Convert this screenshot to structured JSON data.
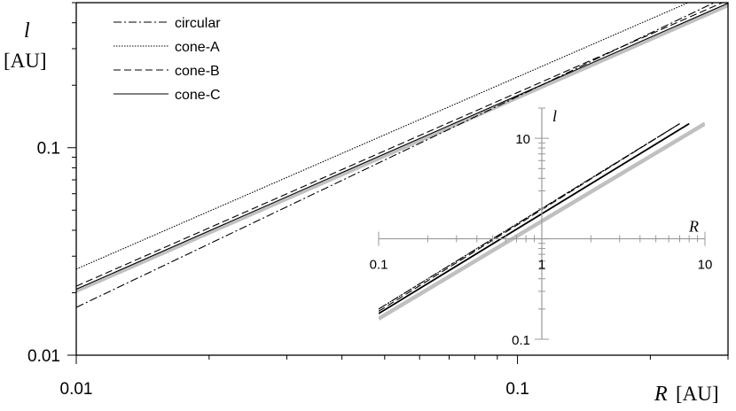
{
  "chart_data": {
    "type": "line",
    "x_scale": "log",
    "y_scale": "log",
    "xlim": [
      0.01,
      0.3
    ],
    "ylim": [
      0.01,
      0.5
    ],
    "x_ticks": [
      "0.01",
      "0.1"
    ],
    "y_ticks": [
      "0.01",
      "0.1"
    ],
    "ylabel": "l",
    "ylabel_unit": "[AU]",
    "xlabel": "R",
    "xlabel_unit": "[AU]",
    "grid": false,
    "legend_position": "top-left",
    "series": [
      {
        "name": "circular",
        "style": "dash-dot",
        "color": "#000000",
        "x": [
          0.01,
          0.3
        ],
        "y": [
          0.017,
          0.538
        ]
      },
      {
        "name": "cone-A",
        "style": "dotted",
        "color": "#000000",
        "x": [
          0.01,
          0.3
        ],
        "y": [
          0.026,
          0.606
        ]
      },
      {
        "name": "cone-B",
        "style": "dashed",
        "color": "#000000",
        "x": [
          0.01,
          0.3
        ],
        "y": [
          0.0215,
          0.514
        ]
      },
      {
        "name": "cone-C",
        "style": "solid",
        "color": "#000000",
        "x": [
          0.01,
          0.3
        ],
        "y": [
          0.0208,
          0.497
        ]
      },
      {
        "style": "solid",
        "color": "#c0c0c0",
        "x": [
          0.01,
          0.3
        ],
        "y": [
          0.0204,
          0.486
        ]
      }
    ],
    "inset": {
      "x_scale": "log",
      "y_scale": "log",
      "xlim": [
        0.1,
        10
      ],
      "ylim": [
        0.1,
        20
      ],
      "x_ticks": [
        "0.1",
        "1",
        "10"
      ],
      "y_ticks": [
        "0.1",
        "1",
        "10"
      ],
      "xlabel": "R",
      "ylabel": "l",
      "series": [
        {
          "style": "dash-dot",
          "color": "#000000",
          "x": [
            0.1,
            7
          ],
          "y": [
            0.2,
            14
          ]
        },
        {
          "style": "dotted",
          "color": "#000000",
          "x": [
            0.1,
            7
          ],
          "y": [
            0.2,
            14
          ]
        },
        {
          "style": "dashed",
          "color": "#000000",
          "x": [
            0.1,
            7
          ],
          "y": [
            0.19,
            14
          ]
        },
        {
          "style": "solid",
          "color": "#000000",
          "x": [
            0.1,
            8
          ],
          "y": [
            0.18,
            14
          ]
        },
        {
          "style": "solid",
          "color": "#c0c0c0",
          "x": [
            0.1,
            10
          ],
          "y": [
            0.16,
            14
          ]
        }
      ]
    }
  }
}
